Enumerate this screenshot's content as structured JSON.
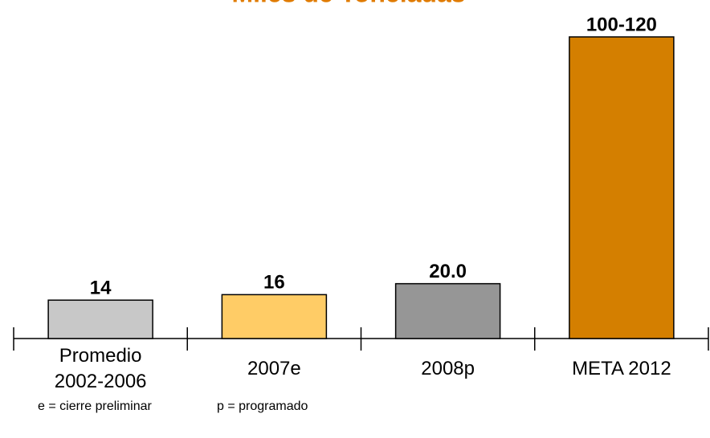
{
  "chart_data": {
    "type": "bar",
    "title": "Miles de Toneladas",
    "categories": [
      "Promedio 2002-2006",
      "2007e",
      "2008p",
      "META 2012"
    ],
    "values": [
      14,
      16,
      20,
      110
    ],
    "value_labels": [
      "14",
      "16",
      "20.0",
      "100-120"
    ],
    "colors": [
      "#c8c8c8",
      "#ffcc66",
      "#969696",
      "#d47f00"
    ],
    "title_color": "#e07b00",
    "notes": [
      "e = cierre preliminar",
      "p = programado"
    ]
  }
}
